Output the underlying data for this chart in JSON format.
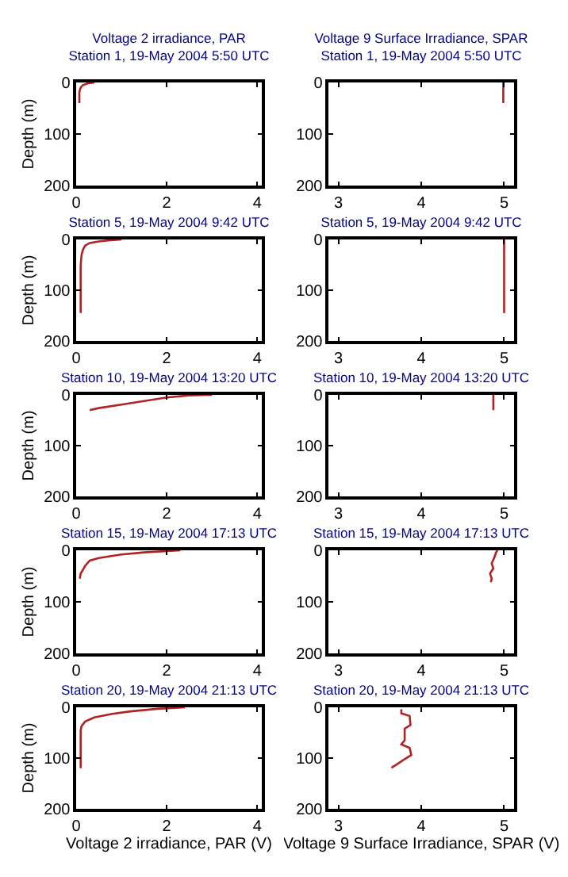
{
  "chart_data": [
    {
      "type": "line",
      "title": "Voltage 2 irradiance, PAR\nStation 1, 19-May 2004 5:50 UTC",
      "ylabel": "Depth (m)",
      "xlim": [
        0,
        4.1
      ],
      "xticks": [
        0,
        2,
        4
      ],
      "ylim": [
        200,
        0
      ],
      "yticks": [
        0,
        100,
        200
      ],
      "series": [
        {
          "color": "#b22222",
          "x": [
            0.4,
            0.25,
            0.15,
            0.1,
            0.08,
            0.07,
            0.07
          ],
          "values": [
            0,
            2,
            5,
            10,
            15,
            20,
            40
          ]
        }
      ]
    },
    {
      "type": "line",
      "title": "Voltage 9 Surface Irradiance, SPAR\nStation 1, 19-May 2004 5:50 UTC",
      "xlim": [
        2.88,
        5.12
      ],
      "xticks": [
        3,
        4,
        5
      ],
      "ylim": [
        200,
        0
      ],
      "yticks": [
        0,
        100,
        200
      ],
      "series": [
        {
          "color": "#b22222",
          "x": [
            4.99,
            4.99
          ],
          "values": [
            0,
            40
          ]
        }
      ]
    },
    {
      "type": "line",
      "title": "Station 5, 19-May 2004 9:42 UTC",
      "ylabel": "Depth (m)",
      "xlim": [
        0,
        4.1
      ],
      "xticks": [
        0,
        2,
        4
      ],
      "ylim": [
        200,
        0
      ],
      "yticks": [
        0,
        100,
        200
      ],
      "series": [
        {
          "color": "#b22222",
          "x": [
            1.0,
            0.7,
            0.5,
            0.3,
            0.2,
            0.15,
            0.12,
            0.1,
            0.1
          ],
          "values": [
            0,
            2,
            4,
            7,
            12,
            20,
            30,
            50,
            145
          ]
        }
      ]
    },
    {
      "type": "line",
      "title": "Station 5, 19-May 2004 9:42 UTC",
      "xlim": [
        2.88,
        5.12
      ],
      "xticks": [
        3,
        4,
        5
      ],
      "ylim": [
        200,
        0
      ],
      "yticks": [
        0,
        100,
        200
      ],
      "series": [
        {
          "color": "#b22222",
          "x": [
            5.0,
            5.0
          ],
          "values": [
            0,
            145
          ]
        }
      ]
    },
    {
      "type": "line",
      "title": "Station 10, 19-May 2004 13:20 UTC",
      "ylabel": "Depth (m)",
      "xlim": [
        0,
        4.1
      ],
      "xticks": [
        0,
        2,
        4
      ],
      "ylim": [
        200,
        0
      ],
      "yticks": [
        0,
        100,
        200
      ],
      "series": [
        {
          "color": "#b22222",
          "x": [
            3.0,
            2.5,
            2.0,
            1.5,
            1.0,
            0.5,
            0.3
          ],
          "values": [
            0,
            1,
            5,
            12,
            19,
            26,
            30
          ]
        }
      ]
    },
    {
      "type": "line",
      "title": "Station 10, 19-May 2004 13:20 UTC",
      "xlim": [
        2.88,
        5.12
      ],
      "xticks": [
        3,
        4,
        5
      ],
      "ylim": [
        200,
        0
      ],
      "yticks": [
        0,
        100,
        200
      ],
      "series": [
        {
          "color": "#b22222",
          "x": [
            4.87,
            4.87
          ],
          "values": [
            0,
            30
          ]
        }
      ]
    },
    {
      "type": "line",
      "title": "Station 15, 19-May 2004 17:13 UTC",
      "ylabel": "Depth (m)",
      "xlim": [
        0,
        4.1
      ],
      "xticks": [
        0,
        2,
        4
      ],
      "ylim": [
        200,
        0
      ],
      "yticks": [
        0,
        100,
        200
      ],
      "series": [
        {
          "color": "#b22222",
          "x": [
            2.3,
            1.5,
            1.0,
            0.5,
            0.3,
            0.2,
            0.1,
            0.08
          ],
          "values": [
            0,
            4,
            8,
            15,
            20,
            30,
            45,
            55
          ]
        }
      ]
    },
    {
      "type": "line",
      "title": "Station 15, 19-May 2004 17:13 UTC",
      "xlim": [
        2.88,
        5.12
      ],
      "xticks": [
        3,
        4,
        5
      ],
      "ylim": [
        200,
        0
      ],
      "yticks": [
        0,
        100,
        200
      ],
      "series": [
        {
          "color": "#b22222",
          "x": [
            4.92,
            4.9,
            4.88,
            4.85,
            4.87,
            4.83,
            4.85,
            4.84
          ],
          "values": [
            0,
            5,
            15,
            25,
            35,
            45,
            55,
            62
          ]
        }
      ]
    },
    {
      "type": "line",
      "title": "Station 20, 19-May 2004 21:13 UTC",
      "ylabel": "Depth (m)",
      "xlabel": "Voltage 2 irradiance, PAR (V)",
      "xlim": [
        0,
        4.1
      ],
      "xticks": [
        0,
        2,
        4
      ],
      "ylim": [
        200,
        0
      ],
      "yticks": [
        0,
        100,
        200
      ],
      "series": [
        {
          "color": "#b22222",
          "x": [
            2.4,
            1.8,
            1.2,
            0.8,
            0.4,
            0.2,
            0.12,
            0.1,
            0.1
          ],
          "values": [
            0,
            3,
            8,
            13,
            20,
            28,
            37,
            45,
            120
          ]
        }
      ]
    },
    {
      "type": "line",
      "title": "Station 20, 19-May 2004 21:13 UTC",
      "xlabel": "Voltage 9 Surface Irradiance, SPAR (V)",
      "xlim": [
        2.88,
        5.12
      ],
      "xticks": [
        3,
        4,
        5
      ],
      "ylim": [
        200,
        0
      ],
      "yticks": [
        0,
        100,
        200
      ],
      "series": [
        {
          "color": "#b22222",
          "x": [
            3.76,
            3.76,
            3.86,
            3.87,
            3.8,
            3.8,
            3.76,
            3.86,
            3.88,
            3.8,
            3.7,
            3.64
          ],
          "values": [
            4,
            12,
            17,
            35,
            42,
            65,
            73,
            80,
            94,
            102,
            113,
            119
          ]
        }
      ]
    }
  ]
}
